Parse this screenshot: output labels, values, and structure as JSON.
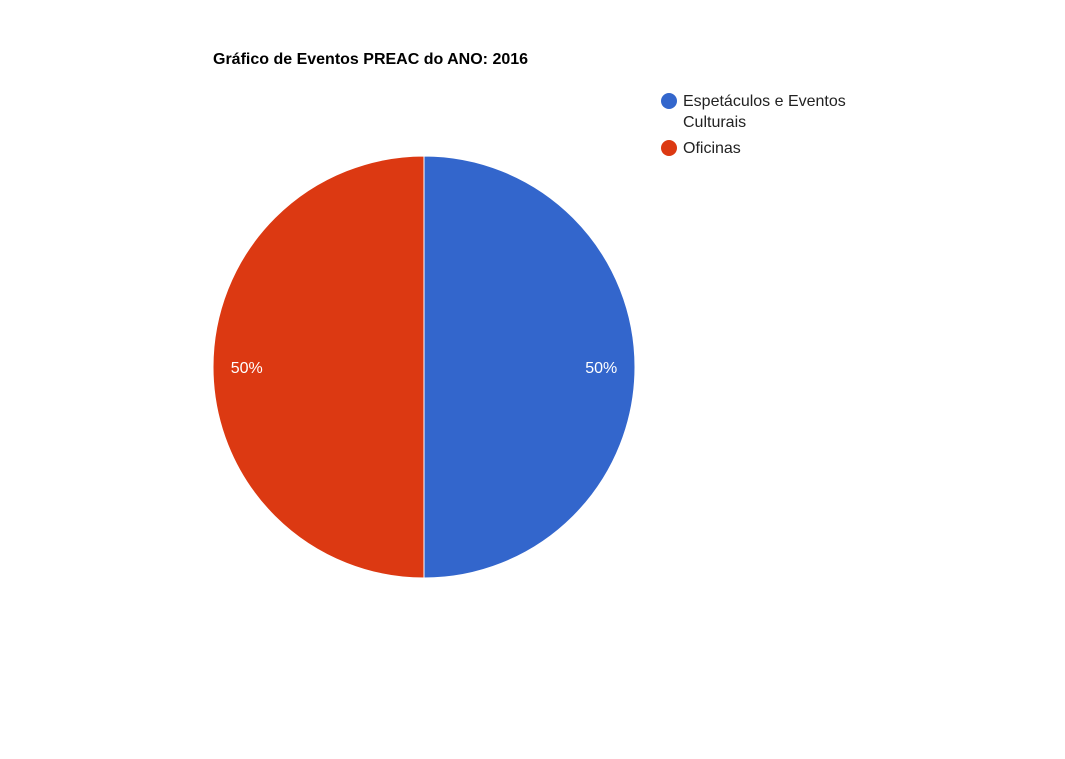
{
  "chart_data": {
    "type": "pie",
    "title": "Gráfico de Eventos PREAC do ANO: 2016",
    "slices": [
      {
        "label_lines": [
          "Espetáculos e Eventos",
          "Culturais"
        ],
        "value": 50,
        "percent_label": "50%",
        "color": "#3366cc"
      },
      {
        "label_lines": [
          "Oficinas"
        ],
        "value": 50,
        "percent_label": "50%",
        "color": "#dc3912"
      }
    ],
    "legend_position": "right"
  }
}
